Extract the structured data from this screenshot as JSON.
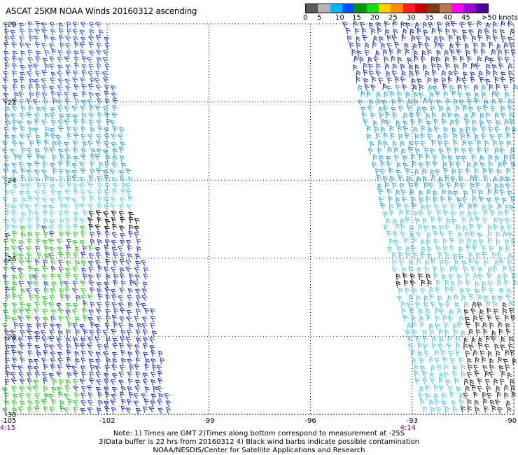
{
  "title": "ASCAT 25KM NOAA Winds 20160312 ascending",
  "legend": {
    "labels": [
      "0",
      "5",
      "10",
      "15",
      "20",
      "25",
      "30",
      "35",
      "40",
      "45",
      ">50 knots"
    ],
    "colors": [
      "#5a5a5a",
      "#b4b4b4",
      "#00b4ff",
      "#0050ff",
      "#009600",
      "#14dc14",
      "#ffd200",
      "#ff8c00",
      "#ff1e1e",
      "#c80000",
      "#7a3c1e",
      "#b47850",
      "#ff00ff",
      "#a000d2",
      "#500096"
    ]
  },
  "axes": {
    "lon_labels": [
      "-105",
      "-102",
      "-99",
      "-96",
      "-93",
      "-90"
    ],
    "lat_labels": [
      "-20",
      "-22",
      "-24",
      "-26",
      "-28",
      "-30"
    ],
    "lon_range": [
      -105,
      -90
    ],
    "lat_range": [
      -30,
      -20
    ]
  },
  "times": {
    "left": "4:15",
    "right": "4:14"
  },
  "notes": [
    "Note: 1) Times are GMT 2)Times along bottom correspond to measurement at -25S",
    "3)Data buffer is 22 hrs from 20160312 4) Black wind barbs indicate possible contamination",
    "NOAA/NESDIS/Center for Satellite Applications and Research"
  ]
}
